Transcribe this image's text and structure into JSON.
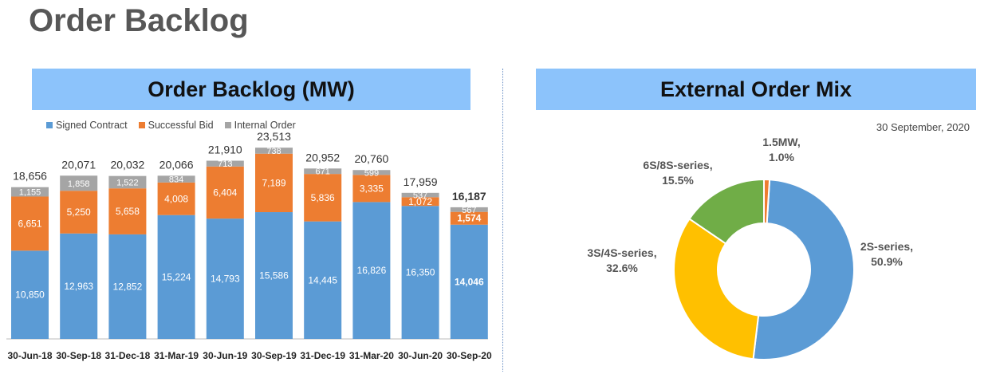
{
  "page": {
    "title": "Order Backlog"
  },
  "chart_data": [
    {
      "type": "bar",
      "stacked": true,
      "title": "Order Backlog (MW)",
      "categories": [
        "30-Jun-18",
        "30-Sep-18",
        "31-Dec-18",
        "31-Mar-19",
        "30-Jun-19",
        "30-Sep-19",
        "31-Dec-19",
        "31-Mar-20",
        "30-Jun-20",
        "30-Sep-20"
      ],
      "series": [
        {
          "name": "Signed Contract",
          "color": "#5b9bd5",
          "values": [
            10850,
            12963,
            12852,
            15224,
            14793,
            15586,
            14445,
            16826,
            16350,
            14046
          ]
        },
        {
          "name": "Successful Bid",
          "color": "#ed7d31",
          "values": [
            6651,
            5250,
            5658,
            4008,
            6404,
            7189,
            5836,
            3335,
            1072,
            1574
          ]
        },
        {
          "name": "Internal Order",
          "color": "#a5a5a5",
          "values": [
            1155,
            1858,
            1522,
            834,
            713,
            738,
            671,
            599,
            537,
            567
          ]
        }
      ],
      "value_labels": [
        [
          "10,850",
          "12,963",
          "12,852",
          "15,224",
          "14,793",
          "15,586",
          "14,445",
          "16,826",
          "16,350",
          "14,046"
        ],
        [
          "6,651",
          "5,250",
          "5,658",
          "4,008",
          "6,404",
          "7,189",
          "5,836",
          "3,335",
          "1,072",
          "1,574"
        ],
        [
          "1,155",
          "1,858",
          "1,522",
          "834",
          "713",
          "738",
          "671",
          "599",
          "537",
          "567"
        ]
      ],
      "totals": [
        18656,
        20071,
        20032,
        20066,
        21910,
        23513,
        20952,
        20760,
        17959,
        16187
      ],
      "total_labels": [
        "18,656",
        "20,071",
        "20,032",
        "20,066",
        "21,910",
        "23,513",
        "20,952",
        "20,760",
        "17,959",
        "16,187"
      ],
      "ylim": [
        0,
        25000
      ],
      "legend": "top-left",
      "grid": false
    },
    {
      "type": "pie",
      "donut": true,
      "title": "External Order Mix",
      "date": "30 September, 2020",
      "slices": [
        {
          "label": "2S-series,",
          "pct_label": "50.9%",
          "value": 50.9,
          "color": "#5b9bd5"
        },
        {
          "label": "3S/4S-series,",
          "pct_label": "32.6%",
          "value": 32.6,
          "color": "#ffc000"
        },
        {
          "label": "6S/8S-series,",
          "pct_label": "15.5%",
          "value": 15.5,
          "color": "#70ad47"
        },
        {
          "label": "1.5MW,",
          "pct_label": "1.0%",
          "value": 1.0,
          "color": "#ed7d31"
        }
      ]
    }
  ]
}
